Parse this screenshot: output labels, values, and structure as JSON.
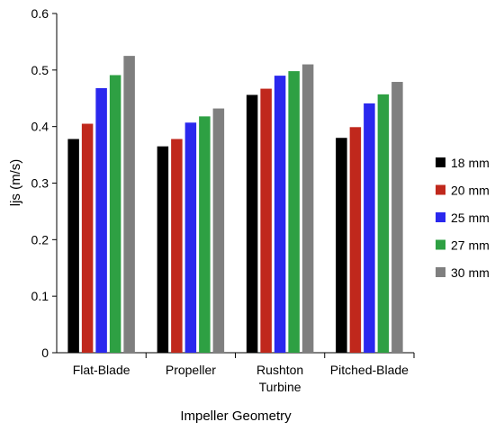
{
  "chart_data": {
    "type": "bar",
    "xlabel": "Impeller Geometry",
    "ylabel": "ljs (m/s)",
    "ylim": [
      0,
      0.6
    ],
    "yticks": [
      "0",
      "0.1",
      "0.2",
      "0.3",
      "0.4",
      "0.5",
      "0.6"
    ],
    "categories": [
      [
        "Flat-Blade"
      ],
      [
        "Propeller"
      ],
      [
        "Rushton",
        "Turbine"
      ],
      [
        "Pitched-Blade"
      ]
    ],
    "series": [
      {
        "name": "18 mm",
        "color": "#000000",
        "values": [
          0.378,
          0.365,
          0.456,
          0.38
        ]
      },
      {
        "name": "20 mm",
        "color": "#c0281c",
        "values": [
          0.405,
          0.378,
          0.467,
          0.399
        ]
      },
      {
        "name": "25 mm",
        "color": "#2a28ee",
        "values": [
          0.468,
          0.407,
          0.49,
          0.441
        ]
      },
      {
        "name": "27 mm",
        "color": "#2ea043",
        "values": [
          0.491,
          0.418,
          0.498,
          0.457
        ]
      },
      {
        "name": "30 mm",
        "color": "#7f7f7f",
        "values": [
          0.525,
          0.432,
          0.51,
          0.479
        ]
      }
    ],
    "legend_position": "right",
    "grid": false
  }
}
